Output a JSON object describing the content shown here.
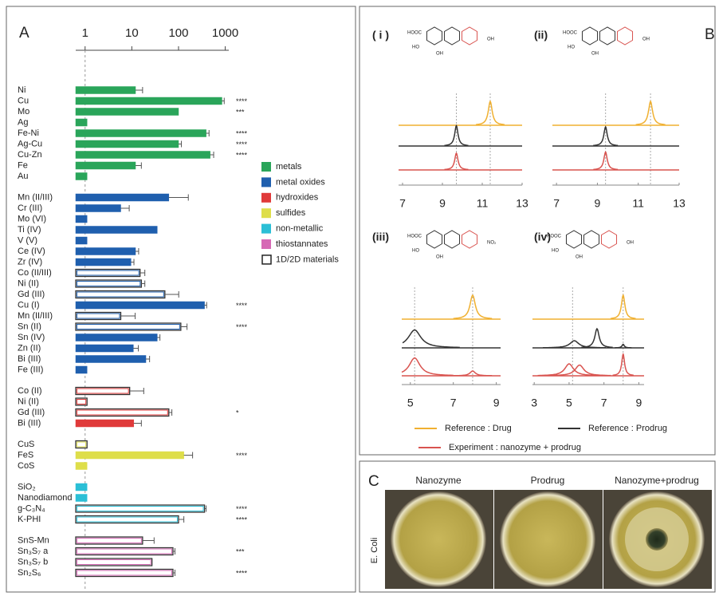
{
  "chart_data": [
    {
      "type": "bar",
      "orientation": "horizontal",
      "panel_label": "A",
      "log_x": true,
      "xlim": [
        0.63,
        1100
      ],
      "xticks": [
        1,
        10,
        100,
        1000
      ],
      "hollow_label": "1D/2D materials",
      "groups": [
        {
          "name": "metals",
          "color": "#2aa55a",
          "categories": [
            "Ni",
            "Cu",
            "Mo",
            "Ag",
            "Fe-Ni",
            "Ag-Cu",
            "Cu-Zn",
            "Fe",
            "Au"
          ],
          "values": [
            12,
            850,
            100,
            1.1,
            390,
            100,
            475,
            12,
            1.1
          ],
          "errors": [
            5,
            100,
            null,
            null,
            60,
            15,
            90,
            4,
            null
          ],
          "hollow": [
            false,
            false,
            false,
            false,
            false,
            false,
            false,
            false,
            false
          ],
          "significance": [
            null,
            "****",
            "***",
            null,
            "****",
            "****",
            "****",
            null,
            null
          ]
        },
        {
          "name": "metal oxides",
          "color": "#1f5fae",
          "categories": [
            "Mn (II/III)",
            "Cr (III)",
            "Mo (VI)",
            "Ti (IV)",
            "V (V)",
            "Ce (IV)",
            "Zr (IV)",
            "Co (II/III)",
            "Ni (II)",
            "Gd (III)",
            "Cu (I)",
            "Mn (II/III)",
            "Sn (II)",
            "Sn (IV)",
            "Zn (II)",
            "Bi (III)",
            "Fe (III)"
          ],
          "values": [
            62,
            5.8,
            1.1,
            35,
            1.1,
            12,
            9.6,
            15,
            16,
            51,
            360,
            5.8,
            112,
            35,
            10.8,
            20,
            1.1
          ],
          "errors": [
            100,
            3,
            null,
            null,
            null,
            2,
            1.5,
            4,
            3,
            50,
            40,
            6,
            40,
            5,
            3,
            4,
            null
          ],
          "hollow": [
            false,
            false,
            false,
            false,
            false,
            false,
            false,
            true,
            true,
            true,
            false,
            true,
            true,
            false,
            false,
            false,
            false
          ],
          "significance": [
            null,
            null,
            null,
            null,
            null,
            null,
            null,
            null,
            null,
            null,
            "****",
            null,
            "****",
            null,
            null,
            null,
            null
          ]
        },
        {
          "name": "hydroxides",
          "color": "#e03a3a",
          "categories": [
            "Co (II)",
            "Ni (II)",
            "Gd (III)",
            "Bi (III)"
          ],
          "values": [
            9,
            1.1,
            62,
            11
          ],
          "errors": [
            9,
            null,
            10,
            5
          ],
          "hollow": [
            true,
            true,
            true,
            false
          ],
          "significance": [
            null,
            null,
            "*",
            null
          ]
        },
        {
          "name": "sulfides",
          "color": "#dede4a",
          "categories": [
            "CuS",
            "FeS",
            "CoS"
          ],
          "values": [
            1.1,
            130,
            1.1
          ],
          "errors": [
            null,
            70,
            null
          ],
          "hollow": [
            true,
            false,
            false
          ],
          "significance": [
            null,
            "****",
            null
          ]
        },
        {
          "name": "non-metallic",
          "color": "#2bbfd6",
          "categories": [
            "SiO₂",
            "Nanodiamond",
            "g-C₃N₄",
            "K-PHI"
          ],
          "values": [
            1.1,
            1.1,
            360,
            100
          ],
          "errors": [
            null,
            null,
            30,
            30
          ],
          "hollow": [
            false,
            false,
            true,
            true
          ],
          "significance": [
            null,
            null,
            "****",
            "****"
          ]
        },
        {
          "name": "thiostannates",
          "color": "#d669b5",
          "categories": [
            "SnS-Mn",
            "Sn₃S₇ a",
            "Sn₃S₇ b",
            "Sn₂S₆"
          ],
          "values": [
            17,
            76,
            27,
            76
          ],
          "errors": [
            13,
            8,
            null,
            8
          ],
          "hollow": [
            true,
            true,
            true,
            true
          ],
          "significance": [
            null,
            "***",
            null,
            "****"
          ]
        }
      ]
    },
    {
      "type": "spectra",
      "panel_label": "B",
      "series": [
        {
          "name": "Reference : Drug",
          "color": "#f0b030"
        },
        {
          "name": "Reference : Prodrug",
          "color": "#333333"
        },
        {
          "name": "Experiment : nanozyme + prodrug",
          "color": "#d9534f"
        }
      ],
      "subplots": [
        {
          "label": "( i )",
          "xlim": [
            6.8,
            13
          ],
          "xticks": [
            7,
            9,
            11,
            13
          ],
          "guides": [
            9.7,
            11.4
          ],
          "molecule_labels": [
            "HOOC",
            "HO",
            "OH",
            "OH"
          ],
          "traces": [
            {
              "peak_x": [
                11.4
              ],
              "peak_height": [
                1
              ],
              "peak_width": [
                0.12
              ]
            },
            {
              "peak_x": [
                9.7
              ],
              "peak_height": [
                0.85
              ],
              "peak_width": [
                0.1
              ]
            },
            {
              "peak_x": [
                9.7
              ],
              "peak_height": [
                0.7
              ],
              "peak_width": [
                0.1
              ]
            }
          ]
        },
        {
          "label": "(ii)",
          "xlim": [
            6.8,
            13
          ],
          "xticks": [
            7,
            9,
            11,
            13
          ],
          "guides": [
            9.4,
            11.6
          ],
          "molecule_labels": [
            "HOOC",
            "HO",
            "OH",
            "OH"
          ],
          "traces": [
            {
              "peak_x": [
                11.6
              ],
              "peak_height": [
                1
              ],
              "peak_width": [
                0.12
              ]
            },
            {
              "peak_x": [
                9.4
              ],
              "peak_height": [
                0.8
              ],
              "peak_width": [
                0.1
              ]
            },
            {
              "peak_x": [
                9.4
              ],
              "peak_height": [
                0.75
              ],
              "peak_width": [
                0.1
              ]
            }
          ]
        },
        {
          "label": "(iii)",
          "xlim": [
            4.6,
            9.2
          ],
          "xticks": [
            5,
            7,
            9
          ],
          "guides": [
            5.2,
            7.9
          ],
          "molecule_labels": [
            "HOOC",
            "HO",
            "OH",
            "NO₂"
          ],
          "traces": [
            {
              "peak_x": [
                7.9
              ],
              "peak_height": [
                1
              ],
              "peak_width": [
                0.15
              ]
            },
            {
              "peak_x": [
                5.2
              ],
              "peak_height": [
                0.75
              ],
              "peak_width": [
                0.35
              ]
            },
            {
              "peak_x": [
                5.2,
                7.9
              ],
              "peak_height": [
                0.75,
                0.2
              ],
              "peak_width": [
                0.3,
                0.15
              ]
            }
          ]
        },
        {
          "label": "(iv)",
          "xlim": [
            2.9,
            9.3
          ],
          "xticks": [
            3,
            5,
            7,
            9
          ],
          "guides": [
            5.2,
            8.1
          ],
          "molecule_labels": [
            "HOOC",
            "HO",
            "OH",
            "OH"
          ],
          "traces": [
            {
              "peak_x": [
                8.1
              ],
              "peak_height": [
                1
              ],
              "peak_width": [
                0.12
              ]
            },
            {
              "peak_x": [
                5.3,
                6.6,
                8.1
              ],
              "peak_height": [
                0.3,
                0.8,
                0.15
              ],
              "peak_width": [
                0.3,
                0.15,
                0.08
              ]
            },
            {
              "peak_x": [
                5.0,
                5.6,
                8.1
              ],
              "peak_height": [
                0.5,
                0.45,
                0.9
              ],
              "peak_width": [
                0.3,
                0.3,
                0.1
              ]
            }
          ]
        }
      ]
    }
  ],
  "panel_c": {
    "label": "C",
    "columns": [
      "Nanozyme",
      "Prodrug",
      "Nanozyme+prodrug"
    ],
    "row_label": "E. Coli"
  }
}
